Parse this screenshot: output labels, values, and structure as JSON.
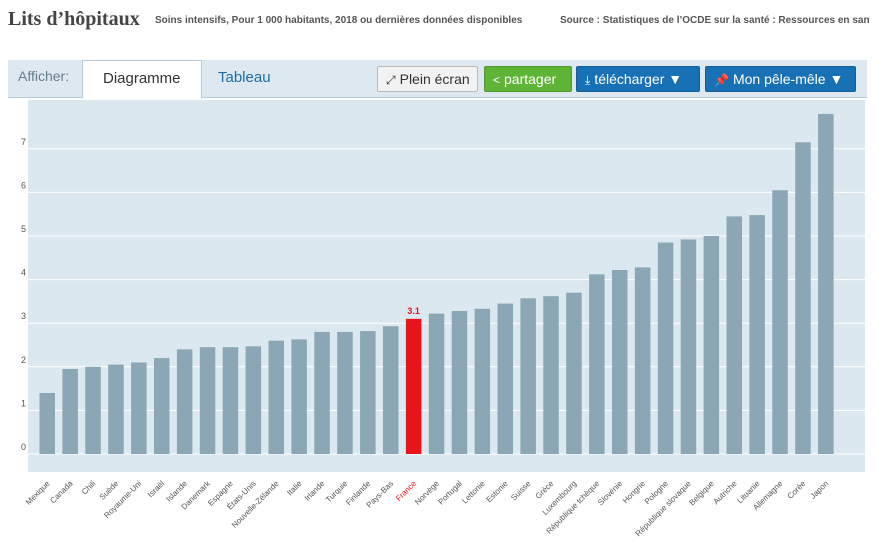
{
  "header": {
    "title": "Lits d’hôpitaux",
    "subtitle": "Soins intensifs, Pour 1 000 habitants, 2018 ou dernières données disponibles",
    "source": "Source : Statistiques de l’OCDE sur la santé : Ressources en santé"
  },
  "tabs": {
    "afficher_label": "Afficher:",
    "chart_tab": "Diagramme",
    "table_tab": "Tableau"
  },
  "toolbar": {
    "fullscreen_label": "Plein écran",
    "share_label": "partager",
    "download_label": "télécharger ▼",
    "pinboard_label": "Mon pêle-mêle ▼"
  },
  "colors": {
    "plot_bg": "#dbe8ef",
    "bar": "#8ba7b5",
    "highlight_bar": "#e8141b",
    "grid": "#ffffff"
  },
  "chart_data": {
    "type": "bar",
    "title": "Lits d’hôpitaux",
    "xlabel": "",
    "ylabel": "",
    "ylim": [
      0,
      8
    ],
    "yticks": [
      0,
      1,
      2,
      3,
      4,
      5,
      6,
      7
    ],
    "grid": true,
    "highlight": "France",
    "highlight_label": "3.1",
    "categories": [
      "Mexique",
      "Canada",
      "Chili",
      "Suède",
      "Royaume-Uni",
      "Israël",
      "Islande",
      "Danemark",
      "Espagne",
      "États-Unis",
      "Nouvelle-Zélande",
      "Italie",
      "Irlande",
      "Turquie",
      "Finlande",
      "Pays-Bas",
      "France",
      "Norvège",
      "Portugal",
      "Lettonie",
      "Estonie",
      "Suisse",
      "Grèce",
      "Luxembourg",
      "République tchèque",
      "Slovénie",
      "Hongrie",
      "Pologne",
      "République slovaque",
      "Belgique",
      "Autriche",
      "Lituanie",
      "Allemagne",
      "Corée",
      "Japon"
    ],
    "values": [
      1.4,
      1.95,
      2.0,
      2.05,
      2.1,
      2.2,
      2.4,
      2.45,
      2.45,
      2.47,
      2.6,
      2.63,
      2.8,
      2.8,
      2.82,
      2.93,
      3.1,
      3.22,
      3.28,
      3.33,
      3.45,
      3.57,
      3.62,
      3.7,
      4.12,
      4.22,
      4.28,
      4.85,
      4.92,
      5.0,
      5.45,
      5.48,
      6.05,
      7.15,
      7.8
    ]
  }
}
